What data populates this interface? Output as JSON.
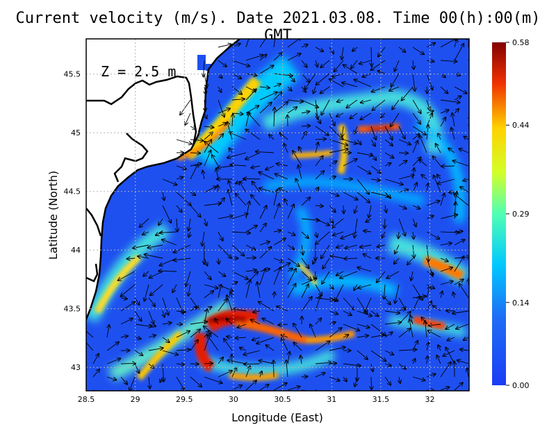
{
  "title": "Current velocity (m/s). Date 2021.03.08. Time 00(h):00(m) GMT",
  "depth_label": "Z = 2.5 m",
  "chart_data": {
    "type": "heatmap",
    "xlabel": "Longitude (East)",
    "ylabel": "Latitude (North)",
    "x_ticks": [
      "28.5",
      "29",
      "29.5",
      "30",
      "30.5",
      "31",
      "31.5",
      "32"
    ],
    "x_tick_values": [
      28.5,
      29,
      29.5,
      30,
      30.5,
      31,
      31.5,
      32
    ],
    "y_ticks": [
      "43",
      "43.5",
      "44",
      "44.5",
      "45",
      "45.5"
    ],
    "y_tick_values": [
      43,
      43.5,
      44,
      44.5,
      45,
      45.5
    ],
    "xlim": [
      28.5,
      32.4
    ],
    "ylim": [
      42.8,
      45.8
    ],
    "grid": true,
    "colorbar": {
      "ticks": [
        "0.58",
        "0.44",
        "0.29",
        "0.14",
        "0.00"
      ],
      "values": [
        0.58,
        0.44,
        0.29,
        0.14,
        0.0
      ],
      "range": [
        0.0,
        0.58
      ]
    },
    "colors": {
      "low": "#1a4cf0",
      "mid_low": "#00d2ff",
      "mid": "#c8ff3c",
      "mid_high": "#ffd200",
      "high": "#e61a00",
      "max": "#7d0000"
    }
  }
}
